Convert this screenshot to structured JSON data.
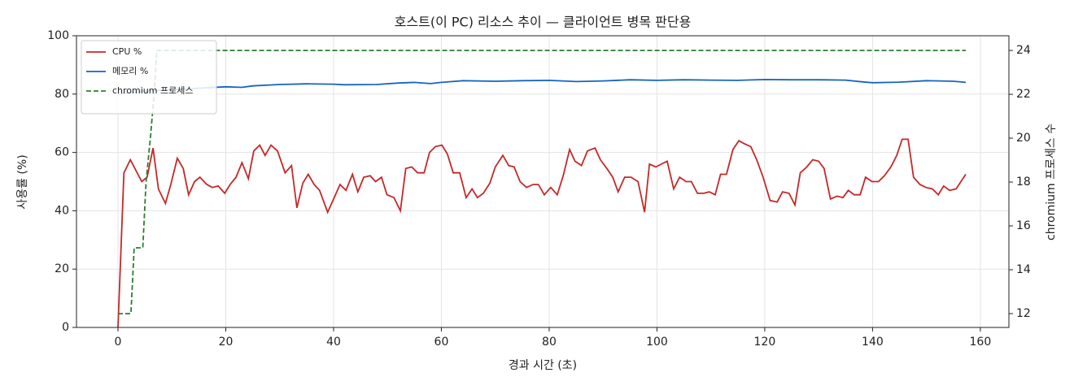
{
  "chart_data": {
    "type": "line",
    "title": "호스트(이 PC) 리소스 추이 — 클라이언트 병목 판단용",
    "x_label": "경과 시간 (초)",
    "y_label": "사용률 (%)",
    "y2_label": "chromium 프로세스 수",
    "xlim": [
      -7.7,
      165.3
    ],
    "xticks": [
      0,
      20,
      40,
      60,
      80,
      100,
      120,
      140,
      160
    ],
    "ylim": [
      0,
      100
    ],
    "yticks": [
      0,
      20,
      40,
      60,
      80,
      100
    ],
    "y2lim": [
      11.37,
      24.67
    ],
    "y2ticks": [
      12,
      14,
      16,
      18,
      20,
      22,
      24
    ],
    "grid": true,
    "legend": "upper left",
    "series": [
      {
        "name": "CPU %",
        "color": "#c62828",
        "linestyle": "solid",
        "x": [
          0,
          1.1,
          2.3,
          4.4,
          5.4,
          6.5,
          7.5,
          8.8,
          9.8,
          11,
          12.1,
          13.1,
          14.2,
          15.2,
          16.5,
          17.5,
          18.6,
          19.8,
          20.8,
          21.9,
          23,
          24.2,
          25.2,
          26.3,
          27.3,
          28.4,
          29.6,
          31,
          32.2,
          33.2,
          34.3,
          35.3,
          36.4,
          37.4,
          38.9,
          40,
          41.2,
          42.3,
          43.5,
          44.5,
          45.6,
          46.8,
          47.8,
          48.9,
          49.9,
          51.2,
          52.4,
          53.4,
          54.5,
          55.6,
          56.8,
          57.8,
          58.9,
          60.1,
          61.1,
          62.2,
          63.4,
          64.6,
          65.7,
          66.7,
          67.8,
          69,
          70,
          71.4,
          72.5,
          73.5,
          74.6,
          75.8,
          77,
          78,
          79.1,
          80.3,
          81.5,
          82.6,
          83.8,
          84.8,
          86,
          87.1,
          88.5,
          89.5,
          90.7,
          91.8,
          92.8,
          94,
          95.2,
          96.5,
          97.7,
          98.6,
          99.8,
          100.8,
          101.9,
          103.1,
          104.2,
          105.4,
          106.4,
          107.5,
          108.7,
          109.7,
          110.8,
          111.8,
          112.9,
          114.1,
          115.2,
          116.2,
          117.4,
          118.5,
          119.7,
          121,
          122.3,
          123.3,
          124.5,
          125.6,
          126.6,
          127.8,
          128.9,
          130,
          131,
          132.2,
          133.4,
          134.5,
          135.5,
          136.6,
          137.7,
          138.7,
          139.9,
          141.1,
          142.2,
          143.4,
          144.5,
          145.5,
          146.6,
          147.6,
          148.8,
          149.9,
          151.1,
          152.2,
          153.2,
          154.3,
          155.5,
          157.3
        ],
        "values": [
          0,
          53,
          57.5,
          50,
          51.5,
          61.5,
          47.5,
          42.5,
          49,
          58,
          54.5,
          45.5,
          50,
          51.5,
          49,
          48,
          48.5,
          46,
          49,
          51.5,
          56.5,
          51,
          60.5,
          62.5,
          59,
          62.5,
          60.5,
          53,
          55.5,
          41,
          49.5,
          52.5,
          49,
          47,
          39.5,
          44,
          49,
          47,
          52.5,
          46.5,
          51.5,
          52,
          50,
          51.5,
          45.5,
          44.5,
          40,
          54.5,
          55,
          53,
          53,
          60,
          62,
          62.5,
          59.5,
          53,
          53,
          44.5,
          47.5,
          44.5,
          46,
          49.5,
          55,
          59,
          55.5,
          55,
          50,
          48,
          49,
          49,
          45.5,
          48,
          45.5,
          52,
          61,
          57,
          55.5,
          60.5,
          61.5,
          57.5,
          54.5,
          51.5,
          46.5,
          51.5,
          51.5,
          50,
          39.5,
          56,
          55,
          56,
          57,
          47.5,
          51.5,
          50,
          50,
          46,
          46,
          46.5,
          45.5,
          52.5,
          52.5,
          61,
          64,
          63,
          62,
          57.5,
          51.5,
          43.5,
          43,
          46.5,
          46,
          42,
          53,
          55,
          57.5,
          57,
          54.5,
          44,
          45,
          44.5,
          47,
          45.5,
          45.5,
          51.5,
          50,
          50,
          52,
          55,
          59,
          64.5,
          64.5,
          51.5,
          49,
          48,
          47.5,
          45.5,
          48.5,
          47,
          47.5,
          52.5
        ]
      },
      {
        "name": "메모리 %",
        "color": "#1565c0",
        "linestyle": "solid",
        "x": [
          0,
          2,
          5,
          10,
          15,
          20,
          23,
          25,
          30,
          35,
          40,
          42,
          48,
          52,
          55,
          58,
          60,
          62,
          64,
          70,
          75,
          80,
          85,
          90,
          95,
          100,
          105,
          110,
          115,
          120,
          125,
          130,
          135,
          138,
          140,
          145,
          150,
          155,
          157.3
        ],
        "values": [
          80,
          80.5,
          81,
          81.5,
          82,
          82.5,
          82.3,
          82.8,
          83.3,
          83.5,
          83.4,
          83.2,
          83.3,
          83.8,
          84,
          83.6,
          84,
          84.3,
          84.6,
          84.4,
          84.6,
          84.7,
          84.3,
          84.5,
          84.9,
          84.7,
          84.9,
          84.8,
          84.7,
          85,
          84.9,
          84.9,
          84.8,
          84.2,
          83.9,
          84.1,
          84.6,
          84.4,
          84
        ]
      },
      {
        "name": "chromium 프로세스",
        "color": "#2e7d32",
        "linestyle": "dashed",
        "axis": "y2",
        "x": [
          0,
          2.4,
          3,
          4.6,
          5.2,
          6,
          6.7,
          7.2,
          157.3
        ],
        "values": [
          12,
          12,
          15,
          15,
          18,
          20,
          22,
          24,
          24
        ]
      }
    ]
  }
}
